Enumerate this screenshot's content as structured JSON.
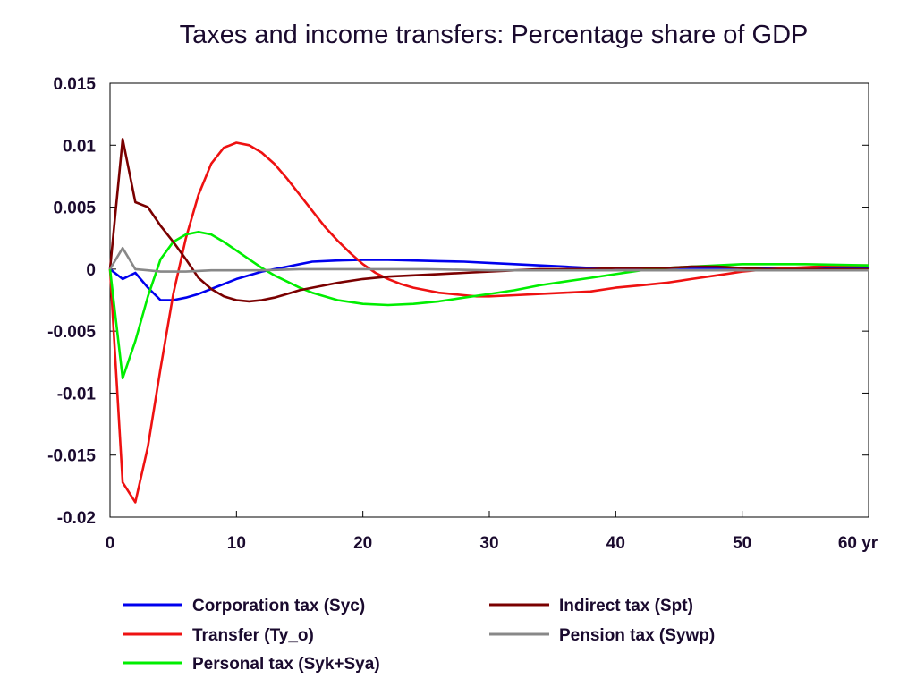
{
  "chart_data": {
    "type": "line",
    "title": "Taxes and income transfers: Percentage share of GDP",
    "xlabel": "",
    "ylabel": "",
    "xlim": [
      0,
      60
    ],
    "ylim": [
      -0.02,
      0.015
    ],
    "x_ticks": [
      0,
      10,
      20,
      30,
      40,
      50,
      60
    ],
    "x_tick_labels": [
      "0",
      "10",
      "20",
      "30",
      "40",
      "50",
      "60 yr"
    ],
    "y_ticks": [
      0.015,
      0.01,
      0.005,
      0,
      -0.005,
      -0.01,
      -0.015,
      -0.02
    ],
    "y_tick_labels": [
      "0.015",
      "0.01",
      "0.005",
      "0",
      "-0.005",
      "-0.01",
      "-0.015",
      "-0.02"
    ],
    "grid": false,
    "legend_position": "bottom",
    "series": [
      {
        "name": "Corporation tax (Syc)",
        "color": "#0000ee",
        "x": [
          0,
          1,
          2,
          3,
          4,
          5,
          6,
          7,
          8,
          9,
          10,
          11,
          12,
          13,
          14,
          15,
          16,
          18,
          20,
          22,
          24,
          26,
          28,
          30,
          32,
          34,
          36,
          38,
          40,
          45,
          50,
          55,
          60
        ],
        "y": [
          0,
          -0.0008,
          -0.0003,
          -0.0015,
          -0.0025,
          -0.0025,
          -0.0023,
          -0.002,
          -0.0016,
          -0.0012,
          -0.0008,
          -0.0005,
          -0.0002,
          0,
          0.0002,
          0.0004,
          0.0006,
          0.0007,
          0.00075,
          0.00075,
          0.0007,
          0.00065,
          0.0006,
          0.0005,
          0.0004,
          0.0003,
          0.0002,
          0.0001,
          0.0001,
          0.0001,
          0.0001,
          0.0001,
          0.0001
        ]
      },
      {
        "name": "Transfer (Ty_o)",
        "color": "#ee1111",
        "x": [
          0,
          1,
          2,
          3,
          4,
          5,
          6,
          7,
          8,
          9,
          10,
          11,
          12,
          13,
          14,
          15,
          16,
          17,
          18,
          19,
          20,
          21,
          22,
          23,
          24,
          25,
          26,
          27,
          28,
          29,
          30,
          32,
          34,
          36,
          38,
          40,
          42,
          44,
          46,
          48,
          50,
          52,
          54,
          56,
          58,
          60
        ],
        "y": [
          0,
          -0.0172,
          -0.0188,
          -0.0143,
          -0.008,
          -0.002,
          0.0025,
          0.006,
          0.0085,
          0.0098,
          0.0102,
          0.01,
          0.0094,
          0.0085,
          0.0073,
          0.006,
          0.0047,
          0.0034,
          0.0023,
          0.0013,
          0.0004,
          -0.0003,
          -0.0008,
          -0.0012,
          -0.0015,
          -0.0017,
          -0.0019,
          -0.002,
          -0.0021,
          -0.0022,
          -0.0022,
          -0.0021,
          -0.002,
          -0.0019,
          -0.0018,
          -0.0015,
          -0.0013,
          -0.0011,
          -0.0008,
          -0.0005,
          -0.0002,
          0,
          0.0001,
          0.0002,
          0.0003,
          0.0003
        ]
      },
      {
        "name": "Personal tax (Syk+Sya)",
        "color": "#00ee00",
        "x": [
          0,
          1,
          2,
          3,
          4,
          5,
          6,
          7,
          8,
          9,
          10,
          11,
          12,
          13,
          14,
          15,
          16,
          18,
          20,
          22,
          24,
          26,
          28,
          30,
          32,
          34,
          36,
          38,
          40,
          42,
          44,
          46,
          48,
          50,
          52,
          55,
          60
        ],
        "y": [
          0,
          -0.0088,
          -0.0058,
          -0.0022,
          0.0008,
          0.0022,
          0.0028,
          0.003,
          0.0028,
          0.0022,
          0.0015,
          0.0008,
          0.0001,
          -0.0005,
          -0.001,
          -0.0015,
          -0.0019,
          -0.0025,
          -0.0028,
          -0.0029,
          -0.0028,
          -0.0026,
          -0.0023,
          -0.002,
          -0.0017,
          -0.0013,
          -0.001,
          -0.0007,
          -0.0004,
          -0.0001,
          0.0001,
          0.0002,
          0.0003,
          0.0004,
          0.0004,
          0.0004,
          0.0003
        ]
      },
      {
        "name": "Indirect tax (Spt)",
        "color": "#7a0000",
        "x": [
          0,
          1,
          2,
          3,
          4,
          5,
          6,
          7,
          8,
          9,
          10,
          11,
          12,
          13,
          14,
          15,
          16,
          18,
          20,
          22,
          24,
          26,
          28,
          30,
          32,
          34,
          36,
          38,
          40,
          42,
          44,
          46,
          48,
          50,
          52,
          54,
          56,
          58,
          60
        ],
        "y": [
          0,
          0.0105,
          0.0054,
          0.005,
          0.0035,
          0.0022,
          0.0008,
          -0.0007,
          -0.0016,
          -0.0022,
          -0.0025,
          -0.0026,
          -0.0025,
          -0.0023,
          -0.002,
          -0.0017,
          -0.0015,
          -0.0011,
          -0.0008,
          -0.0006,
          -0.0005,
          -0.0004,
          -0.0003,
          -0.0002,
          -0.0001,
          0,
          0,
          0,
          0.0001,
          0.0001,
          0.0001,
          0.0002,
          0.0002,
          0.0001,
          0,
          0,
          0,
          0,
          0
        ]
      },
      {
        "name": "Pension tax (Sywp)",
        "color": "#888888",
        "x": [
          0,
          1,
          2,
          3,
          4,
          5,
          6,
          8,
          10,
          12,
          15,
          20,
          25,
          30,
          35,
          40,
          45,
          50,
          55,
          60
        ],
        "y": [
          0,
          0.0017,
          0,
          -0.0001,
          -0.0002,
          -0.0002,
          -0.0002,
          -0.0001,
          -0.0001,
          -0.0001,
          0,
          0,
          0,
          -0.0001,
          -0.0001,
          -0.0001,
          -0.0001,
          -0.0001,
          -0.0001,
          -0.0001
        ]
      }
    ]
  }
}
